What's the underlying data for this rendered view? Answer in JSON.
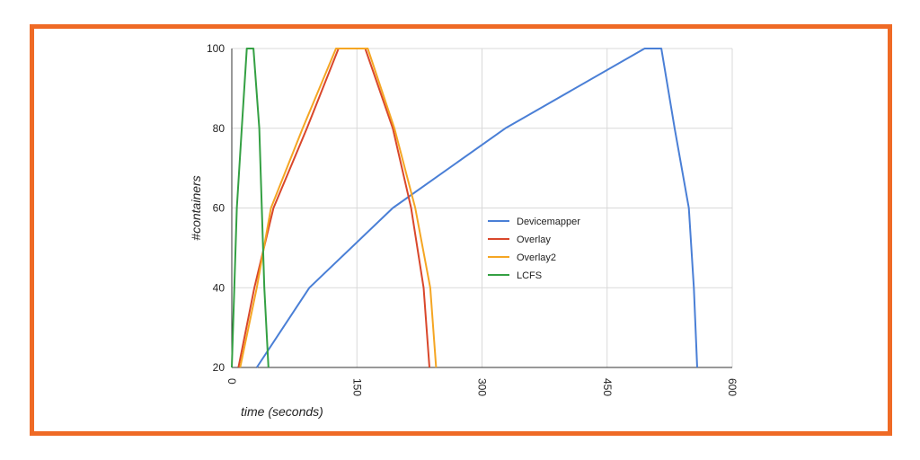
{
  "chart_data": {
    "type": "line",
    "xlabel": "time (seconds)",
    "ylabel": "#containers",
    "xlim": [
      0,
      600
    ],
    "ylim": [
      20,
      100
    ],
    "xticks": [
      0,
      150,
      300,
      450,
      600
    ],
    "yticks": [
      20,
      40,
      60,
      80,
      100
    ],
    "grid": true,
    "legend_position": "center-right",
    "series": [
      {
        "name": "Devicemapper",
        "color": "#4a7fd6",
        "points": [
          [
            30,
            20
          ],
          [
            93,
            40
          ],
          [
            193,
            60
          ],
          [
            328,
            80
          ],
          [
            495,
            100
          ],
          [
            515,
            100
          ],
          [
            531,
            80
          ],
          [
            548,
            60
          ],
          [
            554,
            40
          ],
          [
            558,
            20
          ]
        ]
      },
      {
        "name": "Overlay",
        "color": "#d9472b",
        "points": [
          [
            8,
            20
          ],
          [
            27,
            40
          ],
          [
            50,
            60
          ],
          [
            90,
            80
          ],
          [
            128,
            100
          ],
          [
            160,
            100
          ],
          [
            193,
            80
          ],
          [
            215,
            60
          ],
          [
            230,
            40
          ],
          [
            237,
            20
          ]
        ]
      },
      {
        "name": "Overlay2",
        "color": "#f5a623",
        "points": [
          [
            10,
            20
          ],
          [
            30,
            40
          ],
          [
            47,
            60
          ],
          [
            85,
            80
          ],
          [
            125,
            100
          ],
          [
            163,
            100
          ],
          [
            195,
            80
          ],
          [
            220,
            60
          ],
          [
            238,
            40
          ],
          [
            245,
            20
          ]
        ]
      },
      {
        "name": "LCFS",
        "color": "#34a043",
        "points": [
          [
            0,
            20
          ],
          [
            6,
            60
          ],
          [
            12,
            80
          ],
          [
            18,
            100
          ],
          [
            26,
            100
          ],
          [
            33,
            80
          ],
          [
            39,
            40
          ],
          [
            44,
            20
          ]
        ]
      }
    ]
  }
}
